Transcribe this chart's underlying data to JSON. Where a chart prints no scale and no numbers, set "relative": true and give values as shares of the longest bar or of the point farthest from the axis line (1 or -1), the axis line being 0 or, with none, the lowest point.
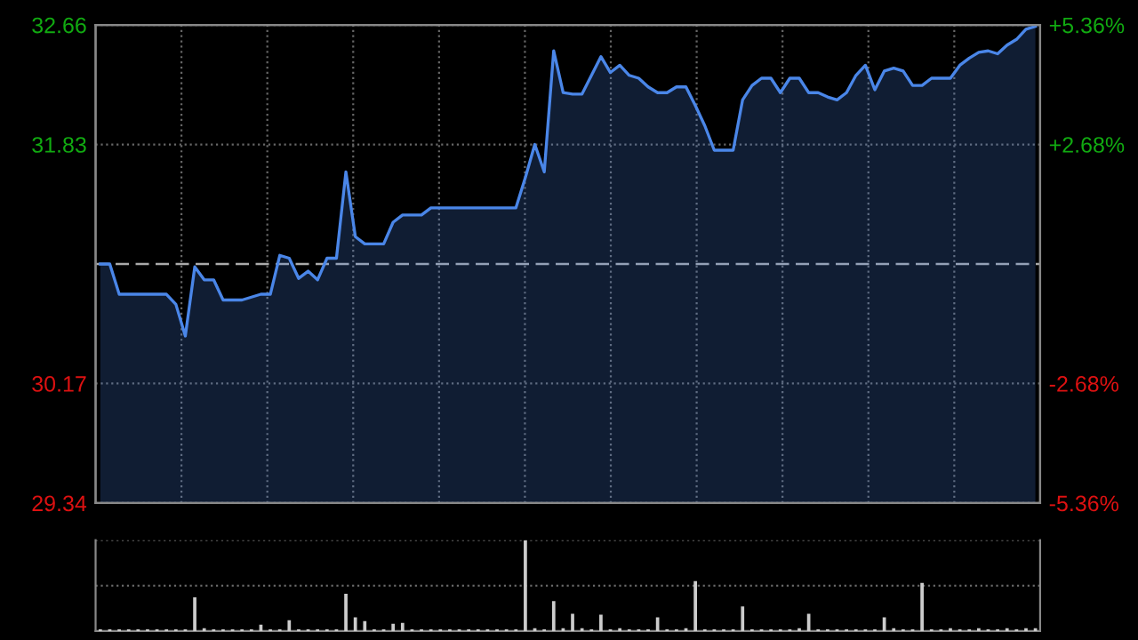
{
  "chart_data": [
    {
      "type": "area",
      "categories": [
        null,
        null,
        null,
        null,
        null,
        null,
        null,
        null,
        null,
        null,
        null,
        null,
        null,
        null,
        null,
        null,
        null,
        null,
        null,
        null,
        null,
        null,
        null,
        null,
        null,
        null,
        null,
        null,
        null,
        null,
        null,
        null,
        null,
        null,
        null,
        null,
        null,
        null,
        null,
        null,
        null,
        null,
        null,
        null,
        null,
        null,
        null,
        null,
        null,
        null,
        null,
        null,
        null,
        null,
        null,
        null,
        null,
        null,
        null,
        null,
        null,
        null,
        null,
        null,
        null,
        null,
        null,
        null,
        null,
        null,
        null,
        null,
        null,
        null,
        null,
        null,
        null,
        null,
        null,
        null,
        null,
        null,
        null,
        null,
        null,
        null,
        null,
        null,
        null,
        null,
        null,
        null,
        null,
        null,
        null,
        null,
        null,
        null,
        null,
        null
      ],
      "series": [
        {
          "color": "#4a86e8",
          "values": [
            31.0,
            31.0,
            30.79,
            30.79,
            30.79,
            30.79,
            30.79,
            30.79,
            30.72,
            30.5,
            30.98,
            30.89,
            30.89,
            30.75,
            30.75,
            30.75,
            30.77,
            30.79,
            30.79,
            31.06,
            31.04,
            30.9,
            30.95,
            30.89,
            31.04,
            31.04,
            31.64,
            31.19,
            31.14,
            31.14,
            31.14,
            31.29,
            31.34,
            31.34,
            31.34,
            31.39,
            31.39,
            31.39,
            31.39,
            31.39,
            31.39,
            31.39,
            31.39,
            31.39,
            31.39,
            31.6,
            31.83,
            31.64,
            32.48,
            32.19,
            32.18,
            32.18,
            32.31,
            32.44,
            32.33,
            32.38,
            32.31,
            32.29,
            32.23,
            32.19,
            32.19,
            32.23,
            32.23,
            32.1,
            31.96,
            31.79,
            31.79,
            31.79,
            32.14,
            32.24,
            32.29,
            32.29,
            32.19,
            32.29,
            32.29,
            32.19,
            32.19,
            32.16,
            32.14,
            32.19,
            32.31,
            32.38,
            32.21,
            32.34,
            32.36,
            32.34,
            32.24,
            32.24,
            32.29,
            32.29,
            32.29,
            32.38,
            32.43,
            32.47,
            32.48,
            32.46,
            32.52,
            32.56,
            32.63,
            32.65
          ]
        }
      ],
      "ylim": [
        29.34,
        32.66
      ],
      "yticks": [
        29.34,
        30.17,
        31.83,
        32.66
      ],
      "y2lim": [
        -5.36,
        5.36
      ],
      "y2ticks": [
        {
          "value": -5.36,
          "label": "-5.36%"
        },
        {
          "value": -2.68,
          "label": "-2.68%"
        },
        {
          "value": 2.68,
          "label": "+2.68%"
        },
        {
          "value": 5.36,
          "label": "+5.36%"
        }
      ],
      "ref_lines": [
        {
          "axis": "y",
          "value": 31.0,
          "line_style": "dashed",
          "color": "#aaaaaa"
        }
      ],
      "grid": true,
      "tick_labels": "y"
    },
    {
      "type": "bar",
      "relative": true,
      "tick_labels": false,
      "ref_lines": [
        {
          "axis": "y",
          "value": 0.5,
          "line_style": "dotted",
          "color": "#666666"
        },
        {
          "axis": "y",
          "value": 1.0,
          "line_style": "dotted",
          "color": "#666666"
        }
      ],
      "categories": [
        null,
        null,
        null,
        null,
        null,
        null,
        null,
        null,
        null,
        null,
        null,
        null,
        null,
        null,
        null,
        null,
        null,
        null,
        null,
        null,
        null,
        null,
        null,
        null,
        null,
        null,
        null,
        null,
        null,
        null,
        null,
        null,
        null,
        null,
        null,
        null,
        null,
        null,
        null,
        null,
        null,
        null,
        null,
        null,
        null,
        null,
        null,
        null,
        null,
        null,
        null,
        null,
        null,
        null,
        null,
        null,
        null,
        null,
        null,
        null,
        null,
        null,
        null,
        null,
        null,
        null,
        null,
        null,
        null,
        null,
        null,
        null,
        null,
        null,
        null,
        null,
        null,
        null,
        null,
        null,
        null,
        null,
        null,
        null,
        null,
        null,
        null,
        null,
        null,
        null,
        null,
        null,
        null,
        null,
        null,
        null,
        null,
        null,
        null,
        null
      ],
      "series": [
        {
          "color": "#cccccc",
          "values": [
            0.02,
            0.02,
            0.02,
            0.02,
            0.02,
            0.02,
            0.02,
            0.02,
            0.02,
            0.02,
            0.37,
            0.03,
            0.02,
            0.02,
            0.02,
            0.02,
            0.02,
            0.07,
            0.02,
            0.02,
            0.12,
            0.02,
            0.02,
            0.02,
            0.02,
            0.02,
            0.41,
            0.15,
            0.11,
            0.02,
            0.02,
            0.08,
            0.09,
            0.02,
            0.02,
            0.02,
            0.02,
            0.02,
            0.02,
            0.02,
            0.02,
            0.02,
            0.02,
            0.02,
            0.02,
            1.0,
            0.03,
            0.02,
            0.33,
            0.03,
            0.19,
            0.03,
            0.02,
            0.18,
            0.02,
            0.03,
            0.02,
            0.02,
            0.02,
            0.15,
            0.02,
            0.02,
            0.03,
            0.55,
            0.02,
            0.02,
            0.02,
            0.02,
            0.27,
            0.02,
            0.02,
            0.02,
            0.02,
            0.02,
            0.03,
            0.19,
            0.02,
            0.02,
            0.02,
            0.02,
            0.02,
            0.02,
            0.02,
            0.15,
            0.03,
            0.02,
            0.02,
            0.53,
            0.02,
            0.02,
            0.03,
            0.02,
            0.02,
            0.03,
            0.02,
            0.02,
            0.03,
            0.02,
            0.03,
            0.03
          ]
        }
      ]
    }
  ]
}
